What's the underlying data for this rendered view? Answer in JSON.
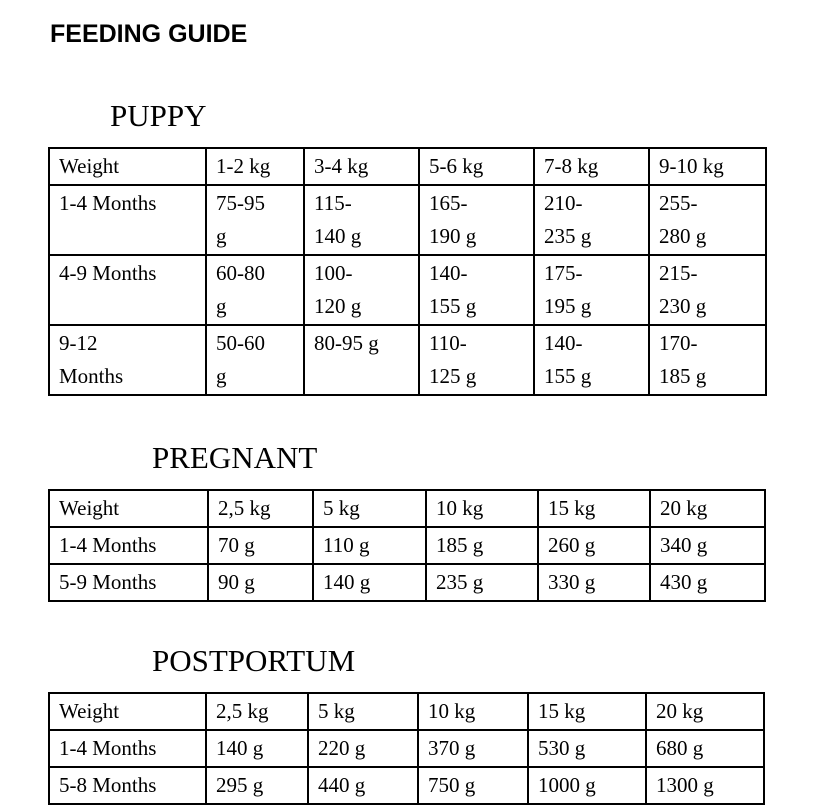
{
  "page": {
    "title": "FEEDING GUIDE",
    "background_color": "#ffffff",
    "text_color": "#000000"
  },
  "tables": [
    {
      "heading": "PUPPY",
      "columns": [
        "Weight",
        "1-2 kg",
        "3-4 kg",
        "5-6 kg",
        "7-8 kg",
        "9-10 kg"
      ],
      "rows": [
        {
          "label": "1-4 Months",
          "values": [
            "75-95\ng",
            "115-\n140 g",
            "165-\n190 g",
            "210-\n235 g",
            "255-\n280 g"
          ]
        },
        {
          "label": "4-9 Months",
          "values": [
            "60-80\ng",
            "100-\n120 g",
            "140-\n155 g",
            "175-\n195 g",
            "215-\n230 g"
          ]
        },
        {
          "label": "9-12\nMonths",
          "values": [
            "50-60\ng",
            "80-95 g",
            "110-\n125 g",
            "140-\n155 g",
            "170-\n185 g"
          ]
        }
      ]
    },
    {
      "heading": "PREGNANT",
      "columns": [
        "Weight",
        "2,5 kg",
        "5 kg",
        "10 kg",
        "15 kg",
        "20 kg"
      ],
      "rows": [
        {
          "label": "1-4 Months",
          "values": [
            "70 g",
            "110 g",
            "185 g",
            "260 g",
            "340 g"
          ]
        },
        {
          "label": "5-9 Months",
          "values": [
            "90 g",
            "140 g",
            "235 g",
            "330 g",
            "430 g"
          ]
        }
      ]
    },
    {
      "heading": "POSTPORTUM",
      "columns": [
        "Weight",
        "2,5 kg",
        "5 kg",
        "10 kg",
        "15 kg",
        "20 kg"
      ],
      "rows": [
        {
          "label": "1-4 Months",
          "values": [
            "140 g",
            "220 g",
            "370 g",
            "530 g",
            "680 g"
          ]
        },
        {
          "label": "5-8 Months",
          "values": [
            "295 g",
            "440 g",
            "750 g",
            "1000 g",
            "1300 g"
          ]
        }
      ]
    }
  ]
}
